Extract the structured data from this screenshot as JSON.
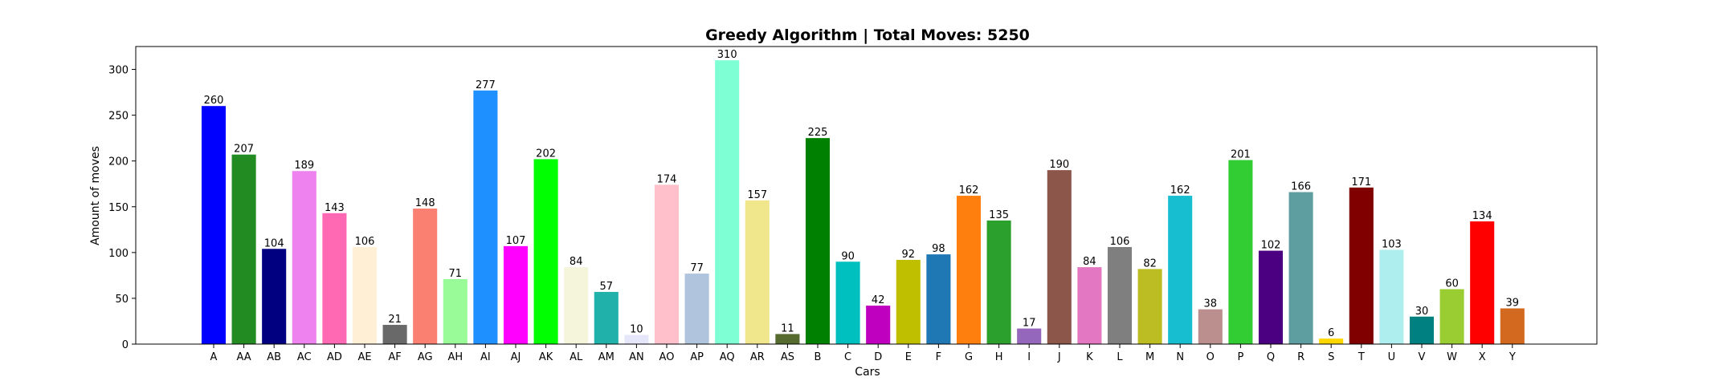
{
  "chart_data": {
    "type": "bar",
    "title": "Greedy Algorithm | Total Moves: 5250",
    "xlabel": "Cars",
    "ylabel": "Amount of moves",
    "ylim": [
      0,
      325
    ],
    "yticks": [
      0,
      50,
      100,
      150,
      200,
      250,
      300
    ],
    "grid": false,
    "categories": [
      "A",
      "AA",
      "AB",
      "AC",
      "AD",
      "AE",
      "AF",
      "AG",
      "AH",
      "AI",
      "AJ",
      "AK",
      "AL",
      "AM",
      "AN",
      "AO",
      "AP",
      "AQ",
      "AR",
      "AS",
      "B",
      "C",
      "D",
      "E",
      "F",
      "G",
      "H",
      "I",
      "J",
      "K",
      "L",
      "M",
      "N",
      "O",
      "P",
      "Q",
      "R",
      "S",
      "T",
      "U",
      "V",
      "W",
      "X",
      "Y"
    ],
    "values": [
      260,
      207,
      104,
      189,
      143,
      106,
      21,
      148,
      71,
      277,
      107,
      202,
      84,
      57,
      10,
      174,
      77,
      310,
      157,
      11,
      225,
      90,
      42,
      92,
      98,
      162,
      135,
      17,
      190,
      84,
      106,
      82,
      162,
      38,
      201,
      102,
      166,
      6,
      171,
      103,
      30,
      60,
      134,
      39
    ],
    "colors": [
      "#0000ff",
      "#228b22",
      "#000080",
      "#ee82ee",
      "#ff69b4",
      "#ffefd5",
      "#696969",
      "#fa8072",
      "#98fb98",
      "#1e90ff",
      "#ff00ff",
      "#00ff00",
      "#f5f5dc",
      "#20b2aa",
      "#e6e6fa",
      "#ffc0cb",
      "#b0c4de",
      "#7fffd4",
      "#f0e68c",
      "#556b2f",
      "#008000",
      "#00bfbf",
      "#bf00bf",
      "#bfbf00",
      "#1f77b4",
      "#ff7f0e",
      "#2ca02c",
      "#9467bd",
      "#8c564b",
      "#e377c2",
      "#7f7f7f",
      "#bcbd22",
      "#17becf",
      "#bc8f8f",
      "#32cd32",
      "#4b0082",
      "#5f9ea0",
      "#ffd700",
      "#800000",
      "#afeeee",
      "#008080",
      "#9acd32",
      "#ff0000",
      "#d2691e"
    ]
  }
}
